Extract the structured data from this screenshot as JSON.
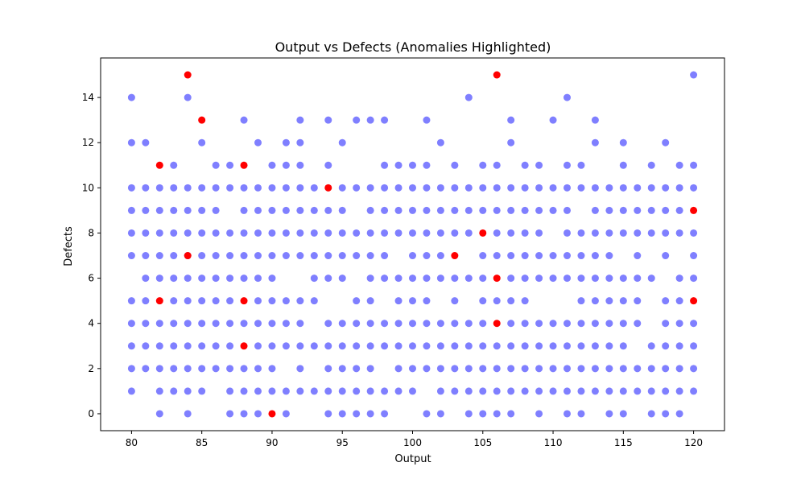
{
  "chart_data": {
    "type": "scatter",
    "title": "Output vs Defects (Anomalies Highlighted)",
    "xlabel": "Output",
    "ylabel": "Defects",
    "xlim": [
      77.8,
      122.2
    ],
    "ylim": [
      -0.75,
      15.75
    ],
    "xticks": [
      80,
      85,
      90,
      95,
      100,
      105,
      110,
      115,
      120
    ],
    "yticks": [
      0,
      2,
      4,
      6,
      8,
      10,
      12,
      14
    ],
    "grid": false,
    "colors": {
      "normal": "#0000ff",
      "anomaly": "#ff0000"
    },
    "normal_points": [
      [
        80,
        14
      ],
      [
        80,
        12
      ],
      [
        80,
        10
      ],
      [
        80,
        9
      ],
      [
        80,
        8
      ],
      [
        80,
        7
      ],
      [
        80,
        5
      ],
      [
        80,
        4
      ],
      [
        80,
        3
      ],
      [
        80,
        2
      ],
      [
        80,
        1
      ],
      [
        81,
        12
      ],
      [
        81,
        10
      ],
      [
        81,
        9
      ],
      [
        81,
        8
      ],
      [
        81,
        7
      ],
      [
        81,
        6
      ],
      [
        81,
        5
      ],
      [
        81,
        4
      ],
      [
        81,
        3
      ],
      [
        81,
        2
      ],
      [
        82,
        10
      ],
      [
        82,
        9
      ],
      [
        82,
        8
      ],
      [
        82,
        7
      ],
      [
        82,
        6
      ],
      [
        82,
        4
      ],
      [
        82,
        3
      ],
      [
        82,
        2
      ],
      [
        82,
        1
      ],
      [
        82,
        0
      ],
      [
        83,
        11
      ],
      [
        83,
        10
      ],
      [
        83,
        9
      ],
      [
        83,
        8
      ],
      [
        83,
        7
      ],
      [
        83,
        6
      ],
      [
        83,
        5
      ],
      [
        83,
        4
      ],
      [
        83,
        3
      ],
      [
        83,
        2
      ],
      [
        83,
        1
      ],
      [
        84,
        14
      ],
      [
        84,
        10
      ],
      [
        84,
        9
      ],
      [
        84,
        8
      ],
      [
        84,
        7
      ],
      [
        84,
        6
      ],
      [
        84,
        5
      ],
      [
        84,
        4
      ],
      [
        84,
        3
      ],
      [
        84,
        2
      ],
      [
        84,
        1
      ],
      [
        84,
        0
      ],
      [
        85,
        12
      ],
      [
        85,
        10
      ],
      [
        85,
        9
      ],
      [
        85,
        8
      ],
      [
        85,
        7
      ],
      [
        85,
        6
      ],
      [
        85,
        5
      ],
      [
        85,
        4
      ],
      [
        85,
        3
      ],
      [
        85,
        2
      ],
      [
        85,
        1
      ],
      [
        86,
        11
      ],
      [
        86,
        10
      ],
      [
        86,
        9
      ],
      [
        86,
        8
      ],
      [
        86,
        7
      ],
      [
        86,
        6
      ],
      [
        86,
        5
      ],
      [
        86,
        4
      ],
      [
        86,
        3
      ],
      [
        86,
        2
      ],
      [
        87,
        11
      ],
      [
        87,
        10
      ],
      [
        87,
        8
      ],
      [
        87,
        7
      ],
      [
        87,
        6
      ],
      [
        87,
        5
      ],
      [
        87,
        4
      ],
      [
        87,
        3
      ],
      [
        87,
        2
      ],
      [
        87,
        1
      ],
      [
        87,
        0
      ],
      [
        88,
        13
      ],
      [
        88,
        10
      ],
      [
        88,
        9
      ],
      [
        88,
        8
      ],
      [
        88,
        7
      ],
      [
        88,
        6
      ],
      [
        88,
        4
      ],
      [
        88,
        2
      ],
      [
        88,
        1
      ],
      [
        88,
        0
      ],
      [
        89,
        12
      ],
      [
        89,
        10
      ],
      [
        89,
        9
      ],
      [
        89,
        8
      ],
      [
        89,
        7
      ],
      [
        89,
        6
      ],
      [
        89,
        5
      ],
      [
        89,
        4
      ],
      [
        89,
        3
      ],
      [
        89,
        2
      ],
      [
        89,
        1
      ],
      [
        89,
        0
      ],
      [
        90,
        11
      ],
      [
        90,
        10
      ],
      [
        90,
        9
      ],
      [
        90,
        8
      ],
      [
        90,
        7
      ],
      [
        90,
        6
      ],
      [
        90,
        5
      ],
      [
        90,
        4
      ],
      [
        90,
        3
      ],
      [
        90,
        2
      ],
      [
        90,
        1
      ],
      [
        91,
        12
      ],
      [
        91,
        11
      ],
      [
        91,
        10
      ],
      [
        91,
        9
      ],
      [
        91,
        8
      ],
      [
        91,
        7
      ],
      [
        91,
        5
      ],
      [
        91,
        4
      ],
      [
        91,
        3
      ],
      [
        91,
        1
      ],
      [
        91,
        0
      ],
      [
        92,
        13
      ],
      [
        92,
        12
      ],
      [
        92,
        11
      ],
      [
        92,
        10
      ],
      [
        92,
        9
      ],
      [
        92,
        8
      ],
      [
        92,
        7
      ],
      [
        92,
        5
      ],
      [
        92,
        4
      ],
      [
        92,
        3
      ],
      [
        92,
        2
      ],
      [
        92,
        1
      ],
      [
        93,
        10
      ],
      [
        93,
        9
      ],
      [
        93,
        8
      ],
      [
        93,
        7
      ],
      [
        93,
        6
      ],
      [
        93,
        5
      ],
      [
        93,
        3
      ],
      [
        93,
        1
      ],
      [
        94,
        13
      ],
      [
        94,
        11
      ],
      [
        94,
        9
      ],
      [
        94,
        8
      ],
      [
        94,
        7
      ],
      [
        94,
        6
      ],
      [
        94,
        4
      ],
      [
        94,
        3
      ],
      [
        94,
        2
      ],
      [
        94,
        1
      ],
      [
        94,
        0
      ],
      [
        95,
        12
      ],
      [
        95,
        10
      ],
      [
        95,
        9
      ],
      [
        95,
        8
      ],
      [
        95,
        7
      ],
      [
        95,
        6
      ],
      [
        95,
        4
      ],
      [
        95,
        3
      ],
      [
        95,
        2
      ],
      [
        95,
        1
      ],
      [
        95,
        0
      ],
      [
        96,
        13
      ],
      [
        96,
        10
      ],
      [
        96,
        8
      ],
      [
        96,
        7
      ],
      [
        96,
        5
      ],
      [
        96,
        4
      ],
      [
        96,
        3
      ],
      [
        96,
        2
      ],
      [
        96,
        1
      ],
      [
        96,
        0
      ],
      [
        97,
        13
      ],
      [
        97,
        10
      ],
      [
        97,
        9
      ],
      [
        97,
        8
      ],
      [
        97,
        7
      ],
      [
        97,
        6
      ],
      [
        97,
        5
      ],
      [
        97,
        4
      ],
      [
        97,
        3
      ],
      [
        97,
        2
      ],
      [
        97,
        1
      ],
      [
        97,
        0
      ],
      [
        98,
        13
      ],
      [
        98,
        11
      ],
      [
        98,
        10
      ],
      [
        98,
        9
      ],
      [
        98,
        8
      ],
      [
        98,
        7
      ],
      [
        98,
        6
      ],
      [
        98,
        4
      ],
      [
        98,
        3
      ],
      [
        98,
        1
      ],
      [
        98,
        0
      ],
      [
        99,
        11
      ],
      [
        99,
        10
      ],
      [
        99,
        9
      ],
      [
        99,
        8
      ],
      [
        99,
        6
      ],
      [
        99,
        5
      ],
      [
        99,
        4
      ],
      [
        99,
        3
      ],
      [
        99,
        2
      ],
      [
        99,
        1
      ],
      [
        100,
        11
      ],
      [
        100,
        10
      ],
      [
        100,
        9
      ],
      [
        100,
        8
      ],
      [
        100,
        7
      ],
      [
        100,
        6
      ],
      [
        100,
        5
      ],
      [
        100,
        4
      ],
      [
        100,
        3
      ],
      [
        100,
        2
      ],
      [
        100,
        1
      ],
      [
        101,
        13
      ],
      [
        101,
        11
      ],
      [
        101,
        10
      ],
      [
        101,
        9
      ],
      [
        101,
        8
      ],
      [
        101,
        7
      ],
      [
        101,
        6
      ],
      [
        101,
        5
      ],
      [
        101,
        4
      ],
      [
        101,
        3
      ],
      [
        101,
        2
      ],
      [
        101,
        0
      ],
      [
        102,
        12
      ],
      [
        102,
        10
      ],
      [
        102,
        9
      ],
      [
        102,
        8
      ],
      [
        102,
        7
      ],
      [
        102,
        6
      ],
      [
        102,
        4
      ],
      [
        102,
        3
      ],
      [
        102,
        2
      ],
      [
        102,
        1
      ],
      [
        102,
        0
      ],
      [
        103,
        11
      ],
      [
        103,
        10
      ],
      [
        103,
        9
      ],
      [
        103,
        8
      ],
      [
        103,
        6
      ],
      [
        103,
        5
      ],
      [
        103,
        4
      ],
      [
        103,
        3
      ],
      [
        103,
        2
      ],
      [
        103,
        1
      ],
      [
        104,
        14
      ],
      [
        104,
        10
      ],
      [
        104,
        9
      ],
      [
        104,
        8
      ],
      [
        104,
        6
      ],
      [
        104,
        4
      ],
      [
        104,
        3
      ],
      [
        104,
        2
      ],
      [
        104,
        1
      ],
      [
        104,
        0
      ],
      [
        105,
        11
      ],
      [
        105,
        10
      ],
      [
        105,
        9
      ],
      [
        105,
        7
      ],
      [
        105,
        6
      ],
      [
        105,
        5
      ],
      [
        105,
        4
      ],
      [
        105,
        3
      ],
      [
        105,
        2
      ],
      [
        105,
        1
      ],
      [
        105,
        0
      ],
      [
        106,
        11
      ],
      [
        106,
        10
      ],
      [
        106,
        9
      ],
      [
        106,
        8
      ],
      [
        106,
        7
      ],
      [
        106,
        5
      ],
      [
        106,
        3
      ],
      [
        106,
        2
      ],
      [
        106,
        1
      ],
      [
        106,
        0
      ],
      [
        107,
        13
      ],
      [
        107,
        12
      ],
      [
        107,
        10
      ],
      [
        107,
        9
      ],
      [
        107,
        8
      ],
      [
        107,
        7
      ],
      [
        107,
        6
      ],
      [
        107,
        5
      ],
      [
        107,
        4
      ],
      [
        107,
        3
      ],
      [
        107,
        2
      ],
      [
        107,
        1
      ],
      [
        107,
        0
      ],
      [
        108,
        11
      ],
      [
        108,
        10
      ],
      [
        108,
        9
      ],
      [
        108,
        8
      ],
      [
        108,
        7
      ],
      [
        108,
        6
      ],
      [
        108,
        5
      ],
      [
        108,
        4
      ],
      [
        108,
        3
      ],
      [
        108,
        2
      ],
      [
        108,
        1
      ],
      [
        109,
        11
      ],
      [
        109,
        10
      ],
      [
        109,
        9
      ],
      [
        109,
        8
      ],
      [
        109,
        7
      ],
      [
        109,
        6
      ],
      [
        109,
        4
      ],
      [
        109,
        3
      ],
      [
        109,
        2
      ],
      [
        109,
        1
      ],
      [
        109,
        0
      ],
      [
        110,
        13
      ],
      [
        110,
        10
      ],
      [
        110,
        9
      ],
      [
        110,
        7
      ],
      [
        110,
        6
      ],
      [
        110,
        4
      ],
      [
        110,
        3
      ],
      [
        110,
        2
      ],
      [
        110,
        1
      ],
      [
        111,
        14
      ],
      [
        111,
        11
      ],
      [
        111,
        10
      ],
      [
        111,
        9
      ],
      [
        111,
        8
      ],
      [
        111,
        7
      ],
      [
        111,
        6
      ],
      [
        111,
        4
      ],
      [
        111,
        3
      ],
      [
        111,
        2
      ],
      [
        111,
        1
      ],
      [
        111,
        0
      ],
      [
        112,
        11
      ],
      [
        112,
        10
      ],
      [
        112,
        8
      ],
      [
        112,
        7
      ],
      [
        112,
        6
      ],
      [
        112,
        5
      ],
      [
        112,
        4
      ],
      [
        112,
        3
      ],
      [
        112,
        2
      ],
      [
        112,
        1
      ],
      [
        112,
        0
      ],
      [
        113,
        13
      ],
      [
        113,
        12
      ],
      [
        113,
        10
      ],
      [
        113,
        9
      ],
      [
        113,
        8
      ],
      [
        113,
        7
      ],
      [
        113,
        6
      ],
      [
        113,
        5
      ],
      [
        113,
        4
      ],
      [
        113,
        3
      ],
      [
        113,
        2
      ],
      [
        113,
        1
      ],
      [
        114,
        10
      ],
      [
        114,
        9
      ],
      [
        114,
        8
      ],
      [
        114,
        7
      ],
      [
        114,
        6
      ],
      [
        114,
        5
      ],
      [
        114,
        4
      ],
      [
        114,
        3
      ],
      [
        114,
        2
      ],
      [
        114,
        1
      ],
      [
        114,
        0
      ],
      [
        115,
        12
      ],
      [
        115,
        11
      ],
      [
        115,
        10
      ],
      [
        115,
        9
      ],
      [
        115,
        8
      ],
      [
        115,
        6
      ],
      [
        115,
        5
      ],
      [
        115,
        4
      ],
      [
        115,
        3
      ],
      [
        115,
        2
      ],
      [
        115,
        1
      ],
      [
        115,
        0
      ],
      [
        116,
        10
      ],
      [
        116,
        9
      ],
      [
        116,
        8
      ],
      [
        116,
        7
      ],
      [
        116,
        6
      ],
      [
        116,
        5
      ],
      [
        116,
        4
      ],
      [
        116,
        2
      ],
      [
        116,
        1
      ],
      [
        117,
        11
      ],
      [
        117,
        10
      ],
      [
        117,
        9
      ],
      [
        117,
        8
      ],
      [
        117,
        6
      ],
      [
        117,
        3
      ],
      [
        117,
        2
      ],
      [
        117,
        1
      ],
      [
        117,
        0
      ],
      [
        118,
        12
      ],
      [
        118,
        10
      ],
      [
        118,
        9
      ],
      [
        118,
        8
      ],
      [
        118,
        7
      ],
      [
        118,
        5
      ],
      [
        118,
        4
      ],
      [
        118,
        3
      ],
      [
        118,
        2
      ],
      [
        118,
        1
      ],
      [
        118,
        0
      ],
      [
        119,
        11
      ],
      [
        119,
        10
      ],
      [
        119,
        9
      ],
      [
        119,
        8
      ],
      [
        119,
        6
      ],
      [
        119,
        5
      ],
      [
        119,
        4
      ],
      [
        119,
        3
      ],
      [
        119,
        2
      ],
      [
        119,
        1
      ],
      [
        119,
        0
      ],
      [
        120,
        15
      ],
      [
        120,
        11
      ],
      [
        120,
        10
      ],
      [
        120,
        8
      ],
      [
        120,
        7
      ],
      [
        120,
        6
      ],
      [
        120,
        4
      ],
      [
        120,
        3
      ],
      [
        120,
        2
      ],
      [
        120,
        1
      ]
    ],
    "anomaly_points": [
      [
        84,
        15
      ],
      [
        85,
        13
      ],
      [
        82,
        11
      ],
      [
        88,
        11
      ],
      [
        94,
        10
      ],
      [
        84,
        7
      ],
      [
        82,
        5
      ],
      [
        88,
        5
      ],
      [
        88,
        3
      ],
      [
        90,
        0
      ],
      [
        106,
        15
      ],
      [
        105,
        8
      ],
      [
        103,
        7
      ],
      [
        106,
        6
      ],
      [
        106,
        4
      ],
      [
        120,
        9
      ],
      [
        120,
        5
      ]
    ]
  }
}
